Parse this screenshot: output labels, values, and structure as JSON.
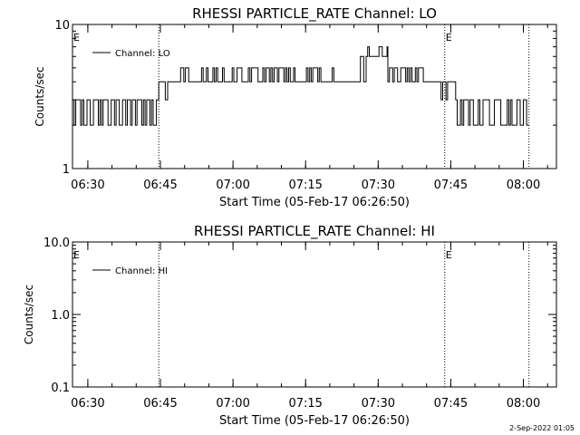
{
  "footer": {
    "timestamp": "2-Sep-2022 01:05"
  },
  "chart_data": [
    {
      "type": "line",
      "title": "RHESSI PARTICLE_RATE Channel: LO",
      "xlabel": "Start Time (05-Feb-17 06:26:50)",
      "ylabel": "Counts/sec",
      "yscale": "log",
      "ylim": [
        1,
        10
      ],
      "xlim": [
        "06:26:50",
        "08:06:50"
      ],
      "x_ticks": [
        "06:30",
        "06:45",
        "07:00",
        "07:15",
        "07:30",
        "07:45",
        "08:00"
      ],
      "y_ticks": [
        "1",
        "10"
      ],
      "legend": {
        "entries": [
          "Channel: LO"
        ],
        "position": "top-left"
      },
      "event_markers": [
        {
          "time": "06:44:40",
          "label": ""
        },
        {
          "time": "07:43:45",
          "label": "E"
        },
        {
          "time": "08:01:10",
          "label": ""
        }
      ],
      "start_marker_label": "E",
      "series": [
        {
          "name": "Channel: LO",
          "segments": [
            {
              "x_start": "06:26:50",
              "x_end": "06:44:40",
              "level_low": 2,
              "level_high": 3,
              "mean": 2.5
            },
            {
              "x_start": "06:44:40",
              "x_end": "06:46:30",
              "level_low": 3,
              "level_high": 4,
              "mean": 3.5
            },
            {
              "x_start": "06:46:30",
              "x_end": "07:25:00",
              "level_low": 4,
              "level_high": 5,
              "mean": 4.3
            },
            {
              "x_start": "07:25:00",
              "x_end": "07:27:30",
              "level_low": 4,
              "level_high": 6,
              "mean": 5
            },
            {
              "x_start": "07:27:30",
              "x_end": "07:32:00",
              "level_low": 6,
              "level_high": 7,
              "mean": 6.4
            },
            {
              "x_start": "07:32:00",
              "x_end": "07:40:00",
              "level_low": 4,
              "level_high": 5,
              "mean": 4.5
            },
            {
              "x_start": "07:40:00",
              "x_end": "07:46:00",
              "level_low": 3,
              "level_high": 4,
              "mean": 3.6
            },
            {
              "x_start": "07:46:00",
              "x_end": "08:01:10",
              "level_low": 2,
              "level_high": 3,
              "mean": 2.5
            }
          ]
        }
      ]
    },
    {
      "type": "line",
      "title": "RHESSI PARTICLE_RATE Channel: HI",
      "xlabel": "Start Time (05-Feb-17 06:26:50)",
      "ylabel": "Counts/sec",
      "yscale": "log",
      "ylim": [
        0.1,
        10.0
      ],
      "xlim": [
        "06:26:50",
        "08:06:50"
      ],
      "x_ticks": [
        "06:30",
        "06:45",
        "07:00",
        "07:15",
        "07:30",
        "07:45",
        "08:00"
      ],
      "y_ticks": [
        "0.1",
        "1.0",
        "10.0"
      ],
      "legend": {
        "entries": [
          "Channel: HI"
        ],
        "position": "top-left"
      },
      "event_markers": [
        {
          "time": "06:44:40",
          "label": ""
        },
        {
          "time": "07:43:45",
          "label": "E"
        },
        {
          "time": "08:01:10",
          "label": ""
        }
      ],
      "start_marker_label": "E",
      "series": [
        {
          "name": "Channel: HI",
          "values": []
        }
      ]
    }
  ]
}
